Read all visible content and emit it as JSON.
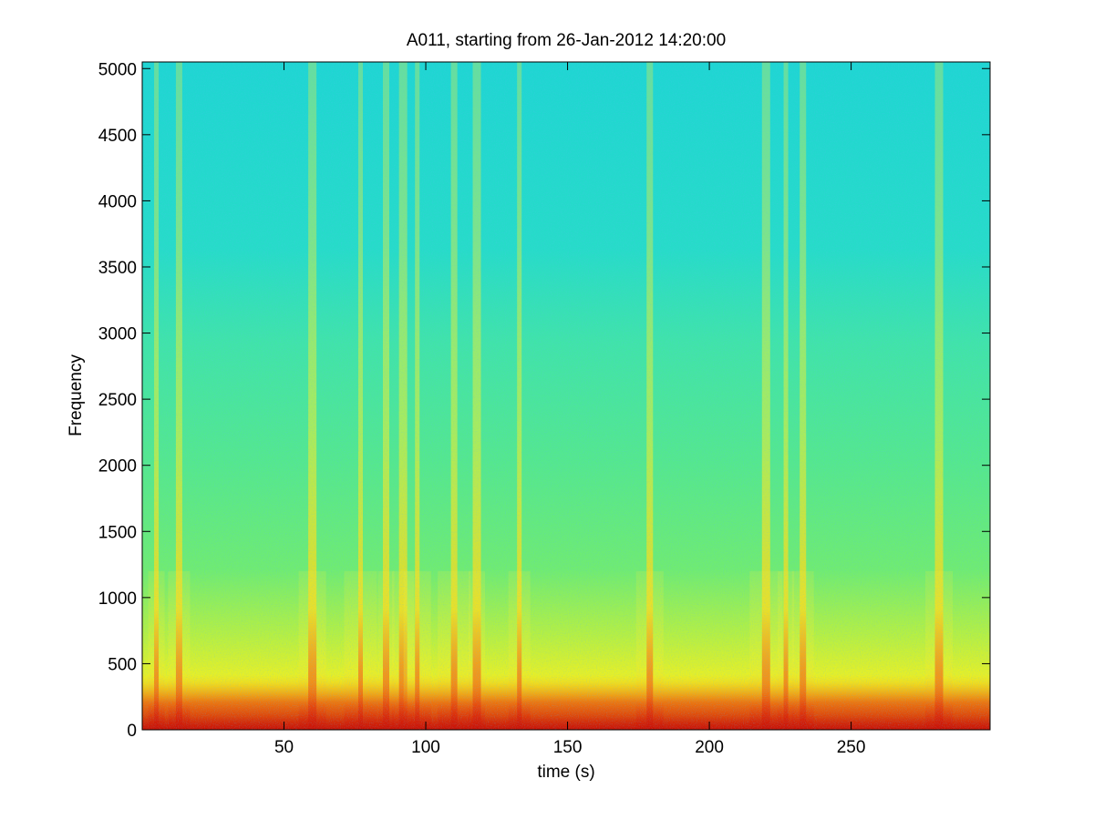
{
  "chart_data": {
    "type": "heatmap",
    "title": "A011, starting from 26-Jan-2012 14:20:00",
    "xlabel": "time (s)",
    "ylabel": "Frequency",
    "xlim": [
      0,
      299
    ],
    "ylim": [
      0,
      5050
    ],
    "xticks": [
      50,
      100,
      150,
      200,
      250
    ],
    "yticks": [
      0,
      500,
      1000,
      1500,
      2000,
      2500,
      3000,
      3500,
      4000,
      4500,
      5000
    ],
    "colormap": "jet",
    "colors": {
      "background": "#1fe8cc",
      "low": "#22d8d8",
      "mid": "#c8f030",
      "high": "#ffea00",
      "peak": "#e02008"
    },
    "broadband_events_s": [
      5,
      13,
      60,
      77,
      86,
      92,
      97,
      110,
      118,
      133,
      179,
      220,
      227,
      233,
      281
    ],
    "description_levels": "intense low-frequency energy below 500 Hz with vertical broadband transients; background noise decreases with frequency"
  }
}
